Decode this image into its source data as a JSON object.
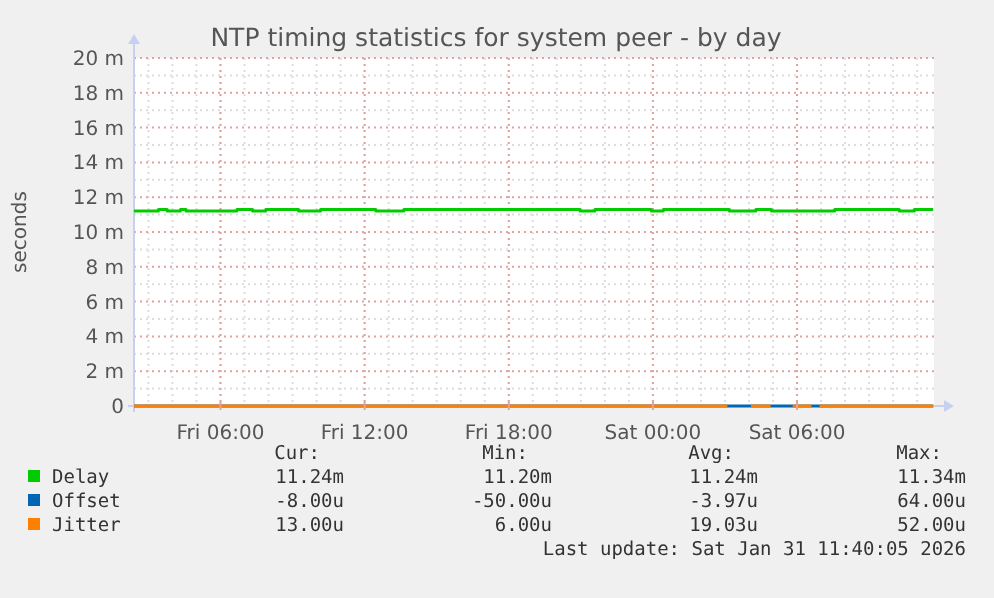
{
  "chart_data": {
    "type": "line",
    "title": "NTP timing statistics for system peer - by day",
    "ylabel": "seconds",
    "xlim": [
      "2026-01-30T02:24",
      "2026-01-31T11:42"
    ],
    "xticks": [
      {
        "value": "2026-01-30T06:00",
        "label": "Fri 06:00"
      },
      {
        "value": "2026-01-30T12:00",
        "label": "Fri 12:00"
      },
      {
        "value": "2026-01-30T18:00",
        "label": "Fri 18:00"
      },
      {
        "value": "2026-01-31T00:00",
        "label": "Sat 00:00"
      },
      {
        "value": "2026-01-31T06:00",
        "label": "Sat 06:00"
      }
    ],
    "ylim": [
      0,
      20
    ],
    "yticks": [
      {
        "value": 0,
        "label": "0"
      },
      {
        "value": 2,
        "label": "2 m"
      },
      {
        "value": 4,
        "label": "4 m"
      },
      {
        "value": 6,
        "label": "6 m"
      },
      {
        "value": 8,
        "label": "8 m"
      },
      {
        "value": 10,
        "label": "10 m"
      },
      {
        "value": 12,
        "label": "12 m"
      },
      {
        "value": 14,
        "label": "14 m"
      },
      {
        "value": 16,
        "label": "16 m"
      },
      {
        "value": 18,
        "label": "18 m"
      },
      {
        "value": 20,
        "label": "20 m"
      }
    ],
    "grid": true,
    "legend": "bottom",
    "series": [
      {
        "name": "Delay",
        "type": "step",
        "color": "#00cc00",
        "x": [
          "2026-01-30T02:24",
          "2026-01-30T03:25",
          "2026-01-30T03:47",
          "2026-01-30T04:20",
          "2026-01-30T04:34",
          "2026-01-30T06:41",
          "2026-01-30T07:20",
          "2026-01-30T07:53",
          "2026-01-30T09:15",
          "2026-01-30T10:10",
          "2026-01-30T12:28",
          "2026-01-30T13:38",
          "2026-01-30T20:58",
          "2026-01-30T21:35",
          "2026-01-30T23:56",
          "2026-01-31T00:26",
          "2026-01-31T03:11",
          "2026-01-31T04:17",
          "2026-01-31T04:56",
          "2026-01-31T07:34",
          "2026-01-31T10:15",
          "2026-01-31T10:53",
          "2026-01-31T11:40"
        ],
        "values": [
          11.2,
          11.3,
          11.2,
          11.3,
          11.2,
          11.3,
          11.2,
          11.3,
          11.2,
          11.3,
          11.2,
          11.3,
          11.2,
          11.3,
          11.2,
          11.3,
          11.2,
          11.3,
          11.2,
          11.3,
          11.2,
          11.3,
          11.3
        ]
      },
      {
        "name": "Offset",
        "type": "step",
        "color": "#0066b3",
        "x": [
          "2026-01-30T02:24",
          "2026-01-31T11:40"
        ],
        "values": [
          0,
          0
        ]
      },
      {
        "name": "Jitter",
        "type": "step",
        "color": "#ff8000",
        "x": [
          "2026-01-30T02:24",
          "2026-01-31T03:06",
          "2026-01-31T03:07",
          "2026-01-31T04:05",
          "2026-01-31T04:54",
          "2026-01-31T04:55",
          "2026-01-31T05:49",
          "2026-01-31T06:36",
          "2026-01-31T06:40",
          "2026-01-31T06:56",
          "2026-01-31T11:40"
        ],
        "values": [
          0,
          0,
          null,
          0,
          0,
          null,
          0,
          0,
          null,
          0,
          0
        ]
      }
    ],
    "annotations": [
      "Cur:",
      "Min:",
      "Avg:",
      "Max:",
      "11.24m",
      "11.20m",
      "11.24m",
      "11.34m",
      "-8.00u",
      "-50.00u",
      "-3.97u",
      "64.00u",
      "13.00u",
      "6.00u",
      "19.03u",
      "52.00u",
      "Last update: Sat Jan 31 11:40:05 2026"
    ]
  }
}
